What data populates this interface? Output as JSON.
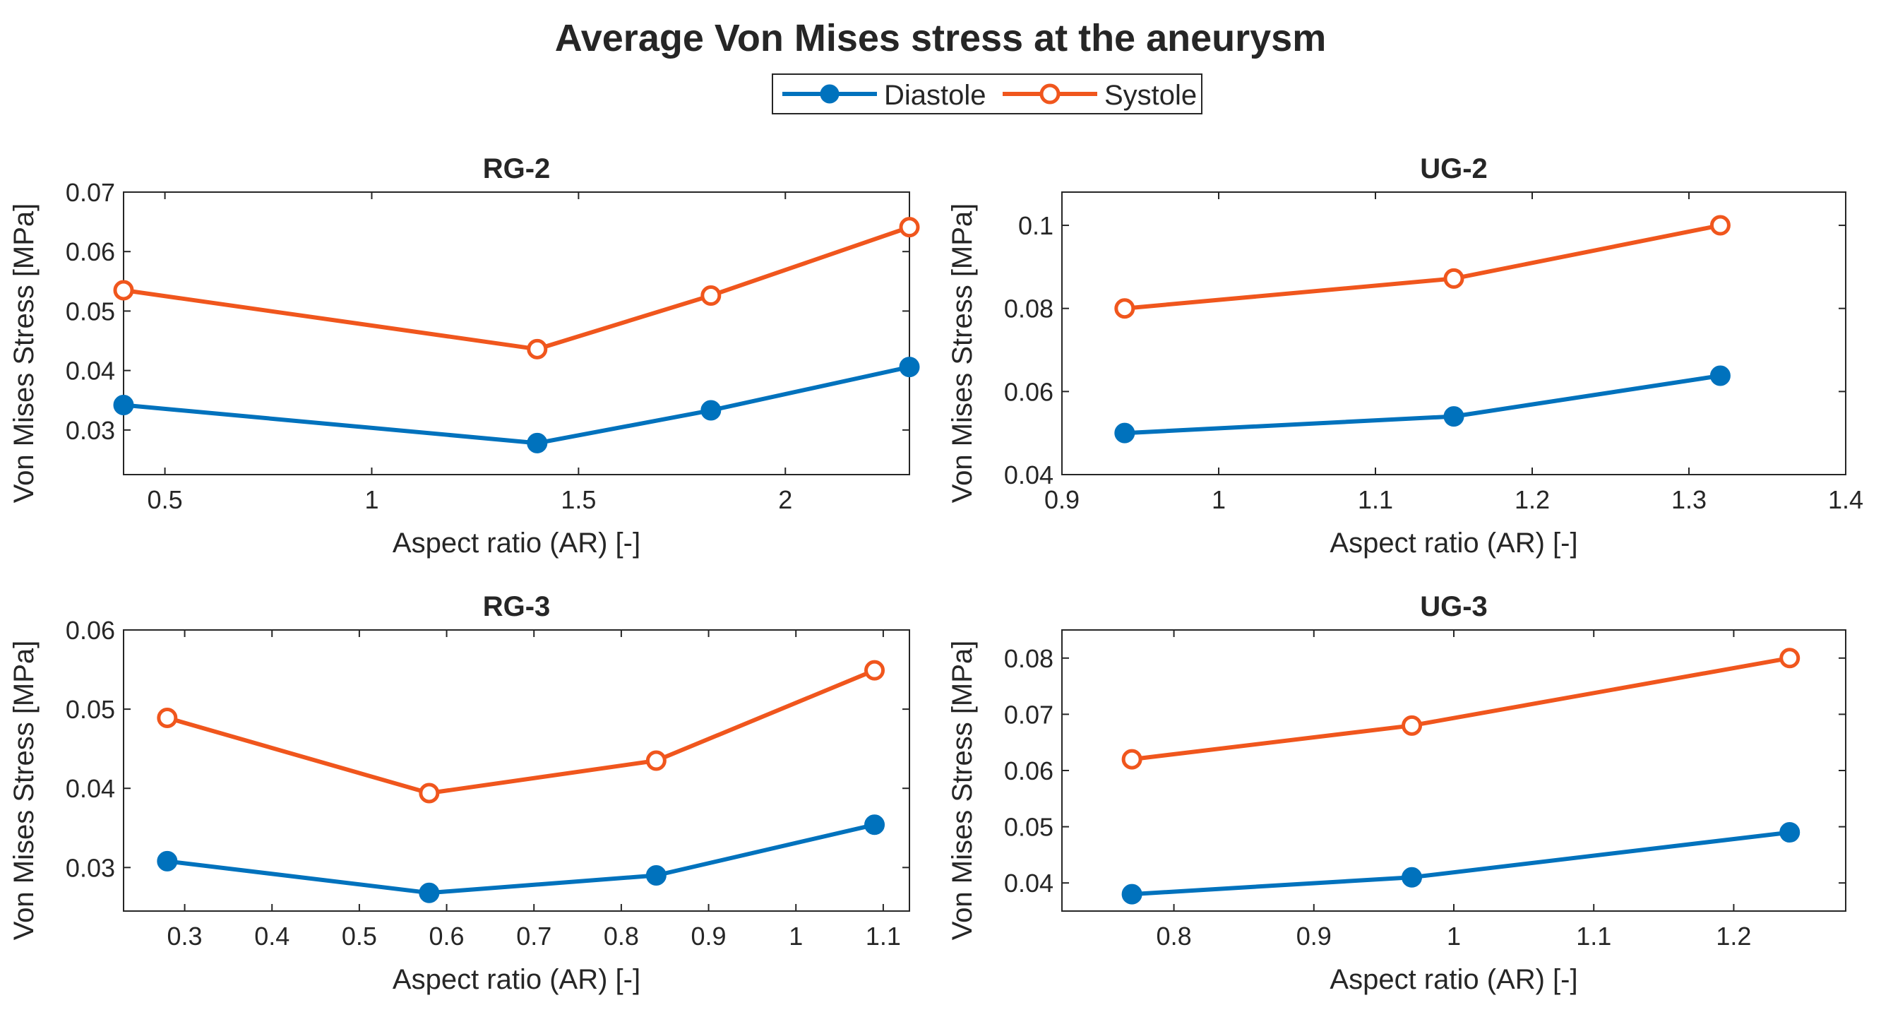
{
  "figure": {
    "title": "Average Von Mises stress at the aneurysm",
    "legend": [
      {
        "name": "Diastole",
        "color": "#0072BD",
        "marker": "filled-circle"
      },
      {
        "name": "Systole",
        "color": "#F0561D",
        "marker": "open-circle"
      }
    ]
  },
  "chart_data": [
    {
      "type": "line",
      "title": "RG-2",
      "xlabel": "Aspect ratio (AR) [-]",
      "ylabel": "Von Mises Stress [MPa]",
      "xlim": [
        0.4,
        2.3
      ],
      "ylim": [
        0.0225,
        0.07
      ],
      "xticks": [
        0.5,
        1,
        1.5,
        2
      ],
      "xtick_labels": [
        "0.5",
        "1",
        "1.5",
        "2"
      ],
      "yticks": [
        0.03,
        0.04,
        0.05,
        0.06,
        0.07
      ],
      "ytick_labels": [
        "0.03",
        "0.04",
        "0.05",
        "0.06",
        "0.07"
      ],
      "x": [
        0.4,
        1.4,
        1.82,
        2.3
      ],
      "series": [
        {
          "name": "Diastole",
          "values": [
            0.0342,
            0.0278,
            0.0333,
            0.0406
          ]
        },
        {
          "name": "Systole",
          "values": [
            0.0535,
            0.0436,
            0.0526,
            0.0641
          ]
        }
      ]
    },
    {
      "type": "line",
      "title": "UG-2",
      "xlabel": "Aspect ratio (AR) [-]",
      "ylabel": "Von Mises Stress [MPa]",
      "xlim": [
        0.9,
        1.4
      ],
      "ylim": [
        0.04,
        0.108
      ],
      "xticks": [
        0.9,
        1,
        1.1,
        1.2,
        1.3,
        1.4
      ],
      "xtick_labels": [
        "0.9",
        "1",
        "1.1",
        "1.2",
        "1.3",
        "1.4"
      ],
      "yticks": [
        0.04,
        0.06,
        0.08,
        0.1
      ],
      "ytick_labels": [
        "0.04",
        "0.06",
        "0.08",
        "0.1"
      ],
      "x": [
        0.94,
        1.15,
        1.32
      ],
      "series": [
        {
          "name": "Diastole",
          "values": [
            0.05,
            0.054,
            0.0638
          ]
        },
        {
          "name": "Systole",
          "values": [
            0.08,
            0.0872,
            0.1
          ]
        }
      ]
    },
    {
      "type": "line",
      "title": "RG-3",
      "xlabel": "Aspect ratio (AR) [-]",
      "ylabel": "Von Mises Stress [MPa]",
      "xlim": [
        0.23,
        1.13
      ],
      "ylim": [
        0.0245,
        0.06
      ],
      "xticks": [
        0.3,
        0.4,
        0.5,
        0.6,
        0.7,
        0.8,
        0.9,
        1,
        1.1
      ],
      "xtick_labels": [
        "0.3",
        "0.4",
        "0.5",
        "0.6",
        "0.7",
        "0.8",
        "0.9",
        "1",
        "1.1"
      ],
      "yticks": [
        0.03,
        0.04,
        0.05,
        0.06
      ],
      "ytick_labels": [
        "0.03",
        "0.04",
        "0.05",
        "0.06"
      ],
      "x": [
        0.28,
        0.58,
        0.84,
        1.09
      ],
      "series": [
        {
          "name": "Diastole",
          "values": [
            0.0308,
            0.0268,
            0.029,
            0.0354
          ]
        },
        {
          "name": "Systole",
          "values": [
            0.0489,
            0.0394,
            0.0435,
            0.0549
          ]
        }
      ]
    },
    {
      "type": "line",
      "title": "UG-3",
      "xlabel": "Aspect ratio (AR) [-]",
      "ylabel": "Von Mises Stress [MPa]",
      "xlim": [
        0.72,
        1.28
      ],
      "ylim": [
        0.035,
        0.085
      ],
      "xticks": [
        0.8,
        0.9,
        1,
        1.1,
        1.2
      ],
      "xtick_labels": [
        "0.8",
        "0.9",
        "1",
        "1.1",
        "1.2"
      ],
      "yticks": [
        0.04,
        0.05,
        0.06,
        0.07,
        0.08
      ],
      "ytick_labels": [
        "0.04",
        "0.05",
        "0.06",
        "0.07",
        "0.08"
      ],
      "x": [
        0.77,
        0.97,
        1.24
      ],
      "series": [
        {
          "name": "Diastole",
          "values": [
            0.038,
            0.041,
            0.049
          ]
        },
        {
          "name": "Systole",
          "values": [
            0.062,
            0.068,
            0.08
          ]
        }
      ]
    }
  ]
}
